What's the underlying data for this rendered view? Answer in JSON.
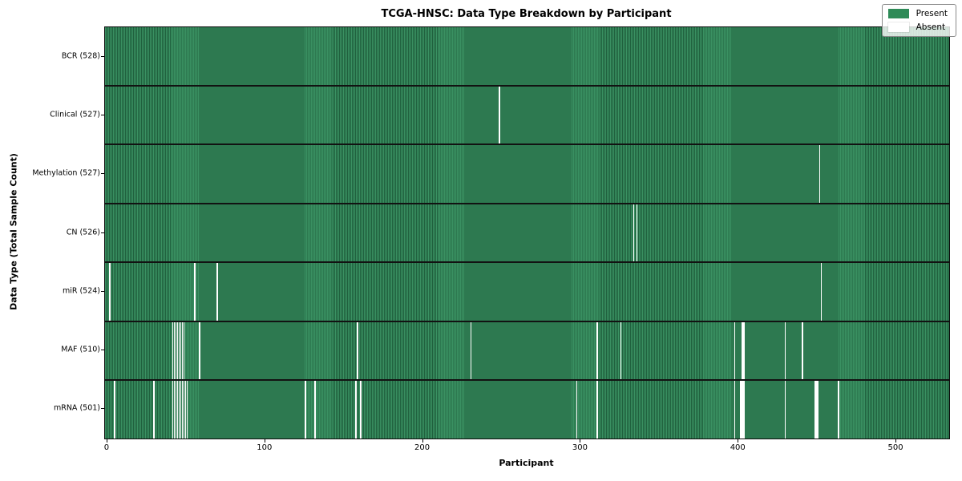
{
  "title": "TCGA-HNSC: Data Type Breakdown by Participant",
  "colors": {
    "present": "#2e8b57",
    "present_stripe_light": "#3a9162",
    "present_stripe_dark": "#20613e",
    "absent": "#ffffff",
    "row_separator": "#121212",
    "legend_border": "#8a8a8a"
  },
  "chart_data": {
    "type": "heatmap",
    "title": "TCGA-HNSC: Data Type Breakdown by Participant",
    "xlabel": "Participant",
    "ylabel": "Data Type (Total Sample Count)",
    "x_axis": {
      "ticks": [
        0,
        100,
        200,
        300,
        400,
        500
      ],
      "range": [
        -1.5,
        533.5
      ]
    },
    "n_participants": 528,
    "grid": false,
    "legend_position": "upper right",
    "legend": [
      {
        "label": "Present",
        "color": "#2e8b57"
      },
      {
        "label": "Absent",
        "color": "#ffffff"
      }
    ],
    "rows": [
      {
        "name": "BCR",
        "label": "BCR (528)",
        "total": 528,
        "absent_participants": []
      },
      {
        "name": "Clinical",
        "label": "Clinical (527)",
        "total": 527,
        "absent_participants": [
          248
        ]
      },
      {
        "name": "Methylation",
        "label": "Methylation (527)",
        "total": 527,
        "absent_participants": [
          451
        ]
      },
      {
        "name": "CN",
        "label": "CN (526)",
        "total": 526,
        "absent_participants": [
          333,
          335
        ]
      },
      {
        "name": "miR",
        "label": "miR (524)",
        "total": 524,
        "absent_participants": [
          1,
          55,
          69,
          452
        ]
      },
      {
        "name": "MAF",
        "label": "MAF (510)",
        "total": 510,
        "absent_participants": [
          41,
          42,
          43,
          44,
          45,
          46,
          47,
          48,
          58,
          158,
          230,
          310,
          325,
          397,
          402,
          403,
          429,
          440
        ]
      },
      {
        "name": "mRNA",
        "label": "mRNA (501)",
        "total": 501,
        "absent_participants": [
          4,
          29,
          41,
          42,
          43,
          44,
          45,
          46,
          47,
          48,
          49,
          50,
          125,
          131,
          157,
          160,
          297,
          310,
          397,
          401,
          402,
          403,
          429,
          448,
          449,
          450,
          463
        ]
      }
    ]
  }
}
